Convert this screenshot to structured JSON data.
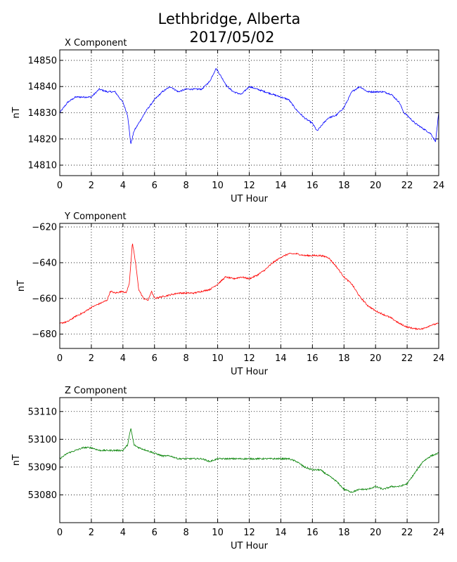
{
  "figure": {
    "title_line1": "Lethbridge, Alberta",
    "title_line2": "2017/05/02"
  },
  "chart_data": [
    {
      "type": "line",
      "title": "X Component",
      "xlabel": "UT Hour",
      "ylabel": "nT",
      "xlim": [
        0,
        24
      ],
      "ylim": [
        14806,
        14854
      ],
      "xticks": [
        0,
        2,
        4,
        6,
        8,
        10,
        12,
        14,
        16,
        18,
        20,
        22,
        24
      ],
      "yticks": [
        14810,
        14820,
        14830,
        14840,
        14850
      ],
      "grid": true,
      "color": "#0000ff",
      "x": [
        0,
        0.5,
        1,
        1.5,
        2,
        2.5,
        3,
        3.5,
        4,
        4.3,
        4.5,
        4.7,
        5,
        5.5,
        6,
        6.5,
        7,
        7.5,
        8,
        8.5,
        9,
        9.5,
        9.9,
        10.2,
        10.6,
        11,
        11.5,
        12,
        12.5,
        13,
        13.5,
        14,
        14.5,
        15,
        15.5,
        16,
        16.3,
        16.7,
        17,
        17.5,
        18,
        18.5,
        19,
        19.5,
        20,
        20.5,
        21,
        21.5,
        21.8,
        22,
        22.5,
        23,
        23.5,
        23.8,
        24
      ],
      "values": [
        14830,
        14834,
        14836,
        14836,
        14836,
        14839,
        14838,
        14838,
        14834,
        14829,
        14818,
        14823,
        14826,
        14831,
        14835,
        14838,
        14840,
        14838,
        14839,
        14839,
        14839,
        14842,
        14847,
        14844,
        14840,
        14838,
        14837,
        14840,
        14839,
        14838,
        14837,
        14836,
        14835,
        14831,
        14828,
        14826,
        14823,
        14826,
        14828,
        14829,
        14832,
        14838,
        14840,
        14838,
        14838,
        14838,
        14837,
        14834,
        14830,
        14829,
        14826,
        14824,
        14822,
        14819,
        14830
      ]
    },
    {
      "type": "line",
      "title": "Y Component",
      "xlabel": "UT Hour",
      "ylabel": "nT",
      "xlim": [
        0,
        24
      ],
      "ylim": [
        -688,
        -618
      ],
      "xticks": [
        0,
        2,
        4,
        6,
        8,
        10,
        12,
        14,
        16,
        18,
        20,
        22,
        24
      ],
      "yticks": [
        -620,
        -640,
        -660,
        -680
      ],
      "grid": true,
      "color": "#ff0000",
      "x": [
        0,
        0.5,
        1,
        1.5,
        2,
        2.5,
        3,
        3.2,
        3.5,
        4,
        4.2,
        4.4,
        4.6,
        4.8,
        5,
        5.3,
        5.6,
        5.8,
        6,
        6.5,
        7,
        7.5,
        8,
        8.5,
        9,
        9.5,
        10,
        10.5,
        11,
        11.5,
        12,
        12.5,
        13,
        13.5,
        14,
        14.5,
        15,
        15.5,
        16,
        16.5,
        17,
        17.5,
        18,
        18.5,
        19,
        19.5,
        20,
        20.5,
        21,
        21.5,
        22,
        22.5,
        23,
        23.5,
        24
      ],
      "values": [
        -674,
        -673,
        -670,
        -668,
        -665,
        -663,
        -661,
        -656,
        -657,
        -656,
        -657,
        -652,
        -629,
        -640,
        -655,
        -660,
        -661,
        -656,
        -660,
        -659,
        -658,
        -657,
        -657,
        -657,
        -656,
        -655,
        -652,
        -648,
        -649,
        -648,
        -649,
        -647,
        -644,
        -640,
        -637,
        -635,
        -635,
        -636,
        -636,
        -636,
        -637,
        -642,
        -648,
        -652,
        -659,
        -664,
        -667,
        -669,
        -671,
        -674,
        -676,
        -677,
        -677,
        -675,
        -674
      ]
    },
    {
      "type": "line",
      "title": "Z Component",
      "xlabel": "UT Hour",
      "ylabel": "nT",
      "xlim": [
        0,
        24
      ],
      "ylim": [
        53070,
        53115
      ],
      "xticks": [
        0,
        2,
        4,
        6,
        8,
        10,
        12,
        14,
        16,
        18,
        20,
        22,
        24
      ],
      "yticks": [
        53080,
        53090,
        53100,
        53110
      ],
      "grid": true,
      "color": "#008000",
      "x": [
        0,
        0.5,
        1,
        1.5,
        2,
        2.5,
        3,
        3.5,
        4,
        4.3,
        4.5,
        4.7,
        5,
        5.5,
        6,
        6.5,
        7,
        7.5,
        8,
        8.5,
        9,
        9.5,
        10,
        10.5,
        11,
        11.5,
        12,
        12.5,
        13,
        13.5,
        14,
        14.5,
        15,
        15.5,
        16,
        16.5,
        17,
        17.5,
        18,
        18.5,
        19,
        19.5,
        20,
        20.5,
        21,
        21.5,
        22,
        22.5,
        23,
        23.5,
        24
      ],
      "values": [
        53093,
        53095,
        53096,
        53097,
        53097,
        53096,
        53096,
        53096,
        53096,
        53098,
        53104,
        53098,
        53097,
        53096,
        53095,
        53094,
        53094,
        53093,
        53093,
        53093,
        53093,
        53092,
        53093,
        53093,
        53093,
        53093,
        53093,
        53093,
        53093,
        53093,
        53093,
        53093,
        53092,
        53090,
        53089,
        53089,
        53087,
        53085,
        53082,
        53081,
        53082,
        53082,
        53083,
        53082,
        53083,
        53083,
        53084,
        53088,
        53092,
        53094,
        53095
      ]
    }
  ]
}
